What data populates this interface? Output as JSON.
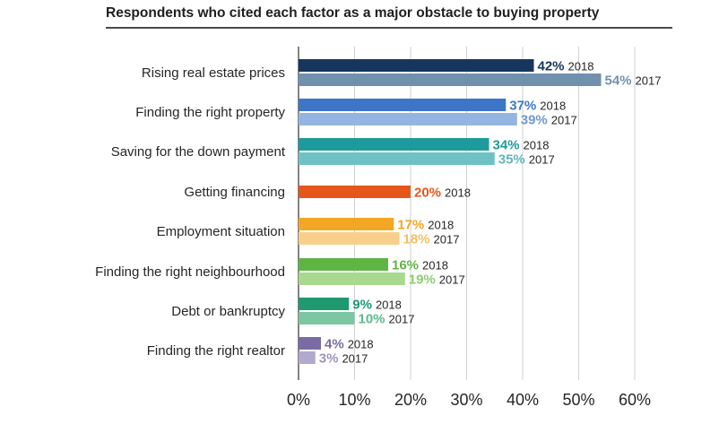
{
  "chart_data": {
    "type": "bar",
    "orientation": "horizontal",
    "title": "Respondents who cited each factor as a major obstacle to buying property",
    "xlim": [
      0,
      60
    ],
    "x_ticks": [
      "0%",
      "10%",
      "20%",
      "30%",
      "40%",
      "50%",
      "60%"
    ],
    "grid": "vertical",
    "categories": [
      {
        "label": "Rising real estate prices",
        "bars": [
          {
            "year": "2018",
            "value": 42,
            "value_label": "42%",
            "color": "#17365d",
            "label_color": "#17365d"
          },
          {
            "year": "2017",
            "value": 54,
            "value_label": "54%",
            "color": "#7190ae",
            "label_color": "#7190ae"
          }
        ]
      },
      {
        "label": "Finding the right property",
        "bars": [
          {
            "year": "2018",
            "value": 37,
            "value_label": "37%",
            "color": "#3d76c9",
            "label_color": "#3d76c9"
          },
          {
            "year": "2017",
            "value": 39,
            "value_label": "39%",
            "color": "#94b5e2",
            "label_color": "#6f97d4"
          }
        ]
      },
      {
        "label": "Saving for the down payment",
        "bars": [
          {
            "year": "2018",
            "value": 34,
            "value_label": "34%",
            "color": "#1f9a9c",
            "label_color": "#1f9a9c"
          },
          {
            "year": "2017",
            "value": 35,
            "value_label": "35%",
            "color": "#6fc2c3",
            "label_color": "#5fb7b8"
          }
        ]
      },
      {
        "label": "Getting financing",
        "bars": [
          {
            "year": "2018",
            "value": 20,
            "value_label": "20%",
            "color": "#e5561a",
            "label_color": "#e5561a"
          }
        ]
      },
      {
        "label": "Employment situation",
        "bars": [
          {
            "year": "2018",
            "value": 17,
            "value_label": "17%",
            "color": "#f3a623",
            "label_color": "#f3a623"
          },
          {
            "year": "2017",
            "value": 18,
            "value_label": "18%",
            "color": "#f8cf8a",
            "label_color": "#f4bf62"
          }
        ]
      },
      {
        "label": "Finding the right neighbourhood",
        "bars": [
          {
            "year": "2018",
            "value": 16,
            "value_label": "16%",
            "color": "#5fb544",
            "label_color": "#5fb544"
          },
          {
            "year": "2017",
            "value": 19,
            "value_label": "19%",
            "color": "#a9d88f",
            "label_color": "#8fcb72"
          }
        ]
      },
      {
        "label": "Debt or bankruptcy",
        "bars": [
          {
            "year": "2018",
            "value": 9,
            "value_label": "9%",
            "color": "#1f9a6e",
            "label_color": "#1f9a6e"
          },
          {
            "year": "2017",
            "value": 10,
            "value_label": "10%",
            "color": "#7cc6a4",
            "label_color": "#5fb78f"
          }
        ]
      },
      {
        "label": "Finding the right realtor",
        "bars": [
          {
            "year": "2018",
            "value": 4,
            "value_label": "4%",
            "color": "#7a6ba3",
            "label_color": "#7a6ba3"
          },
          {
            "year": "2017",
            "value": 3,
            "value_label": "3%",
            "color": "#b2a9cc",
            "label_color": "#9d92bf"
          }
        ]
      }
    ]
  }
}
